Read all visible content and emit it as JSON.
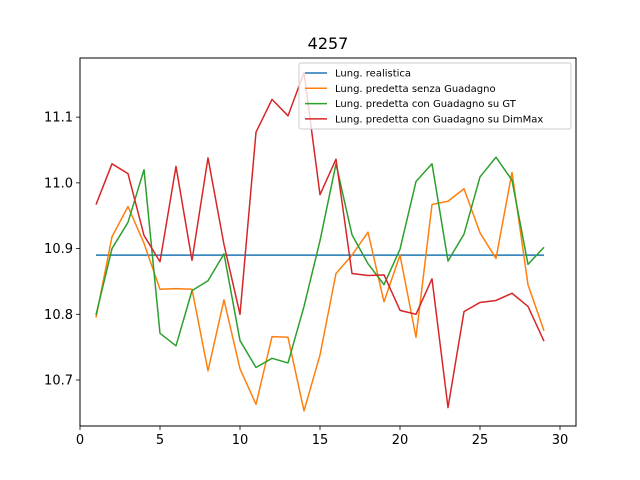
{
  "chart_data": {
    "type": "line",
    "title": "4257",
    "xlabel": "",
    "ylabel": "",
    "xlim": [
      0,
      31
    ],
    "ylim": [
      10.63,
      11.19
    ],
    "xticks": [
      0,
      5,
      10,
      15,
      20,
      25,
      30
    ],
    "yticks": [
      10.7,
      10.8,
      10.9,
      11.0,
      11.1
    ],
    "ytick_labels": [
      "10.7",
      "10.8",
      "10.9",
      "11.0",
      "11.1"
    ],
    "grid": false,
    "legend_position": "top-right",
    "x": [
      1,
      2,
      3,
      4,
      5,
      6,
      7,
      8,
      9,
      10,
      11,
      12,
      13,
      14,
      15,
      16,
      17,
      18,
      19,
      20,
      21,
      22,
      23,
      24,
      25,
      26,
      27,
      28,
      29
    ],
    "series": [
      {
        "name": "Lung. realistica",
        "color": "#1f77b4",
        "values": [
          10.89,
          10.89,
          10.89,
          10.89,
          10.89,
          10.89,
          10.89,
          10.89,
          10.89,
          10.89,
          10.89,
          10.89,
          10.89,
          10.89,
          10.89,
          10.89,
          10.89,
          10.89,
          10.89,
          10.89,
          10.89,
          10.89,
          10.89,
          10.89,
          10.89,
          10.89,
          10.89,
          10.89,
          10.89
        ]
      },
      {
        "name": "Lung. predetta senza Guadagno",
        "color": "#ff7f0e",
        "values": [
          10.795,
          10.918,
          10.964,
          10.908,
          10.838,
          10.839,
          10.838,
          10.714,
          10.822,
          10.717,
          10.663,
          10.766,
          10.765,
          10.653,
          10.738,
          10.862,
          10.89,
          10.925,
          10.819,
          10.89,
          10.765,
          10.967,
          10.972,
          10.991,
          10.924,
          10.885,
          11.016,
          10.845,
          10.775
        ]
      },
      {
        "name": "Lung. predetta con Guadagno su GT",
        "color": "#2ca02c",
        "values": [
          10.799,
          10.9,
          10.94,
          11.02,
          10.771,
          10.752,
          10.836,
          10.851,
          10.892,
          10.76,
          10.719,
          10.733,
          10.726,
          10.812,
          10.912,
          11.029,
          10.921,
          10.877,
          10.845,
          10.899,
          11.002,
          11.029,
          10.881,
          10.922,
          11.009,
          11.039,
          11.004,
          10.876,
          10.902
        ]
      },
      {
        "name": "Lung. predetta con Guadagno su DimMax",
        "color": "#d62728",
        "values": [
          10.967,
          11.029,
          11.014,
          10.92,
          10.88,
          11.025,
          10.882,
          11.038,
          10.906,
          10.8,
          11.077,
          11.127,
          11.102,
          11.168,
          10.982,
          11.036,
          10.862,
          10.859,
          10.86,
          10.806,
          10.8,
          10.854,
          10.658,
          10.804,
          10.818,
          10.821,
          10.832,
          10.812,
          10.759
        ]
      }
    ]
  }
}
